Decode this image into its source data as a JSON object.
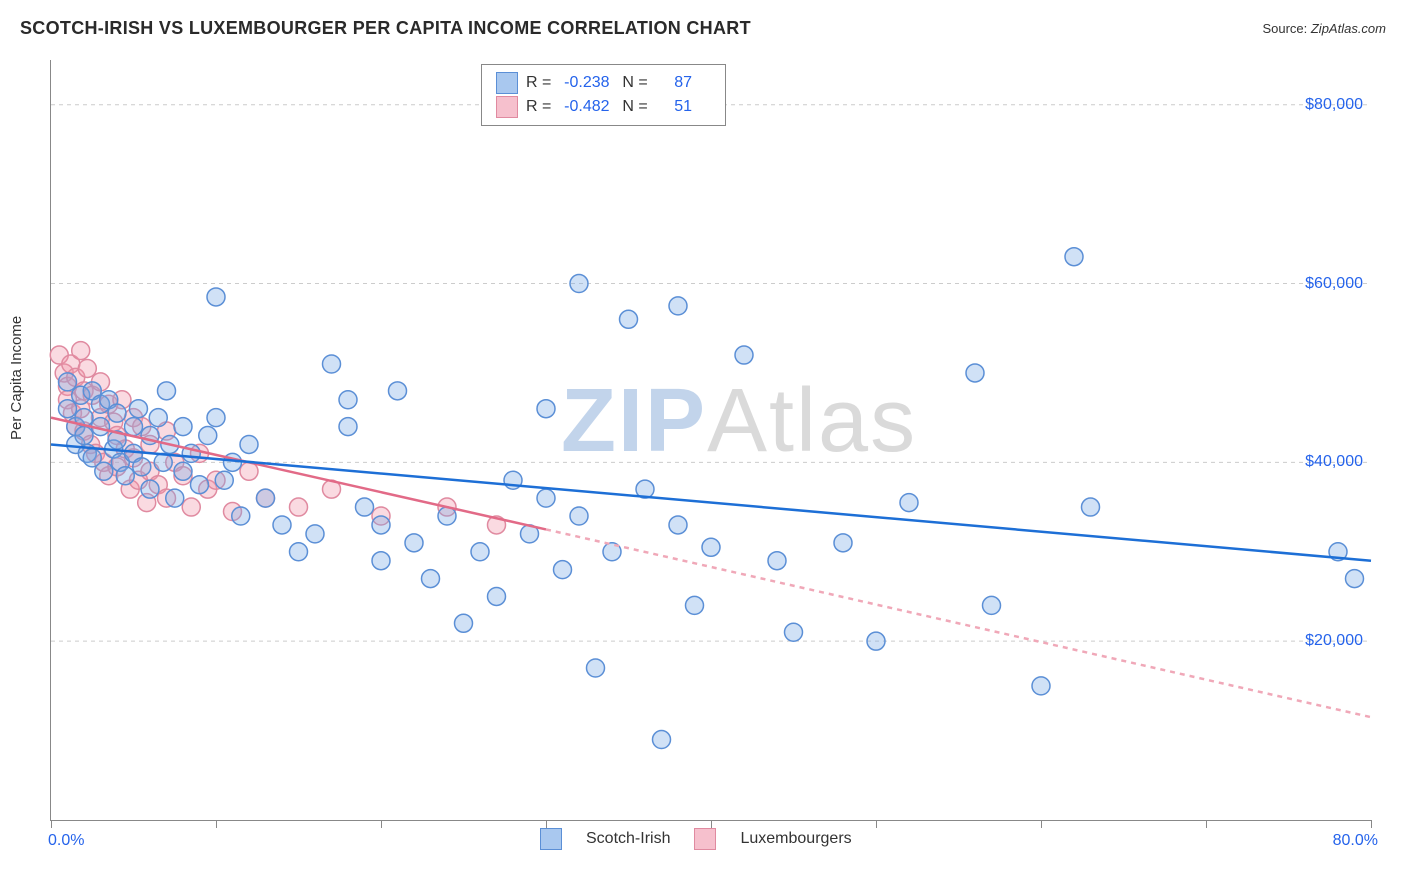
{
  "title": "SCOTCH-IRISH VS LUXEMBOURGER PER CAPITA INCOME CORRELATION CHART",
  "source_prefix": "Source: ",
  "source_name": "ZipAtlas.com",
  "y_axis_label": "Per Capita Income",
  "watermark_a": "ZIP",
  "watermark_b": "Atlas",
  "chart": {
    "type": "scatter",
    "background_color": "#ffffff",
    "grid_color": "#cccccc",
    "axis_color": "#888888",
    "text_color": "#333333",
    "value_color": "#2563eb",
    "xlim": [
      0,
      80
    ],
    "ylim": [
      0,
      85000
    ],
    "x_start_label": "0.0%",
    "x_end_label": "80.0%",
    "x_ticks": [
      0,
      10,
      20,
      30,
      40,
      50,
      60,
      70,
      80
    ],
    "y_ticks": [
      {
        "v": 20000,
        "label": "$20,000"
      },
      {
        "v": 40000,
        "label": "$40,000"
      },
      {
        "v": 60000,
        "label": "$60,000"
      },
      {
        "v": 80000,
        "label": "$80,000"
      }
    ],
    "marker_radius": 9,
    "marker_stroke_width": 1.5,
    "trend_line_width": 2.5,
    "dashed_pattern": "5,5",
    "series": [
      {
        "name": "Scotch-Irish",
        "fill": "rgba(120,170,230,0.35)",
        "stroke": "#5b8fd6",
        "swatch_fill": "#a9c8ef",
        "swatch_border": "#5b8fd6",
        "R": "-0.238",
        "N": "87",
        "trend": {
          "x1": 0,
          "y1": 42000,
          "x2": 80,
          "y2": 29000,
          "color": "#1d6fd6"
        },
        "points": [
          [
            1,
            49000
          ],
          [
            1,
            46000
          ],
          [
            1.5,
            44000
          ],
          [
            1.5,
            42000
          ],
          [
            1.8,
            47500
          ],
          [
            2,
            45000
          ],
          [
            2,
            43000
          ],
          [
            2.2,
            41000
          ],
          [
            2.5,
            48000
          ],
          [
            2.5,
            40500
          ],
          [
            3,
            46500
          ],
          [
            3,
            44000
          ],
          [
            3.2,
            39000
          ],
          [
            3.5,
            47000
          ],
          [
            3.8,
            41500
          ],
          [
            4,
            45500
          ],
          [
            4,
            42500
          ],
          [
            4.2,
            40000
          ],
          [
            4.5,
            38500
          ],
          [
            5,
            44000
          ],
          [
            5,
            41000
          ],
          [
            5.3,
            46000
          ],
          [
            5.5,
            39500
          ],
          [
            6,
            43000
          ],
          [
            6,
            37000
          ],
          [
            6.5,
            45000
          ],
          [
            6.8,
            40000
          ],
          [
            7,
            48000
          ],
          [
            7.2,
            42000
          ],
          [
            7.5,
            36000
          ],
          [
            8,
            44000
          ],
          [
            8,
            39000
          ],
          [
            8.5,
            41000
          ],
          [
            9,
            37500
          ],
          [
            9.5,
            43000
          ],
          [
            10,
            58500
          ],
          [
            10,
            45000
          ],
          [
            10.5,
            38000
          ],
          [
            11,
            40000
          ],
          [
            11.5,
            34000
          ],
          [
            12,
            42000
          ],
          [
            13,
            36000
          ],
          [
            14,
            33000
          ],
          [
            15,
            30000
          ],
          [
            16,
            32000
          ],
          [
            17,
            51000
          ],
          [
            18,
            47000
          ],
          [
            18,
            44000
          ],
          [
            19,
            35000
          ],
          [
            20,
            33000
          ],
          [
            20,
            29000
          ],
          [
            21,
            48000
          ],
          [
            22,
            31000
          ],
          [
            23,
            27000
          ],
          [
            24,
            34000
          ],
          [
            25,
            22000
          ],
          [
            26,
            30000
          ],
          [
            27,
            25000
          ],
          [
            28,
            38000
          ],
          [
            29,
            32000
          ],
          [
            30,
            46000
          ],
          [
            30,
            36000
          ],
          [
            31,
            28000
          ],
          [
            32,
            60000
          ],
          [
            32,
            34000
          ],
          [
            33,
            17000
          ],
          [
            34,
            30000
          ],
          [
            35,
            56000
          ],
          [
            36,
            37000
          ],
          [
            37,
            9000
          ],
          [
            38,
            57500
          ],
          [
            38,
            33000
          ],
          [
            39,
            24000
          ],
          [
            40,
            30500
          ],
          [
            42,
            52000
          ],
          [
            44,
            29000
          ],
          [
            45,
            21000
          ],
          [
            48,
            31000
          ],
          [
            50,
            20000
          ],
          [
            52,
            35500
          ],
          [
            56,
            50000
          ],
          [
            57,
            24000
          ],
          [
            60,
            15000
          ],
          [
            62,
            63000
          ],
          [
            63,
            35000
          ],
          [
            78,
            30000
          ],
          [
            79,
            27000
          ]
        ]
      },
      {
        "name": "Luxembourgers",
        "fill": "rgba(240,150,170,0.35)",
        "stroke": "#e08aa0",
        "swatch_fill": "#f6c0cd",
        "swatch_border": "#e08aa0",
        "R": "-0.482",
        "N": "51",
        "trend_solid": {
          "x1": 0,
          "y1": 45000,
          "x2": 30,
          "y2": 32500,
          "color": "#e26a87"
        },
        "trend_dashed": {
          "x1": 30,
          "y1": 32500,
          "x2": 80,
          "y2": 11500,
          "color": "#f0a8b8"
        },
        "points": [
          [
            0.5,
            52000
          ],
          [
            0.8,
            50000
          ],
          [
            1,
            48500
          ],
          [
            1,
            47000
          ],
          [
            1.2,
            51000
          ],
          [
            1.3,
            45500
          ],
          [
            1.5,
            49500
          ],
          [
            1.5,
            44000
          ],
          [
            1.8,
            52500
          ],
          [
            1.8,
            46000
          ],
          [
            2,
            48000
          ],
          [
            2,
            43500
          ],
          [
            2.2,
            50500
          ],
          [
            2.4,
            42000
          ],
          [
            2.5,
            47500
          ],
          [
            2.7,
            41000
          ],
          [
            3,
            49000
          ],
          [
            3,
            45000
          ],
          [
            3.2,
            40000
          ],
          [
            3.5,
            46500
          ],
          [
            3.5,
            38500
          ],
          [
            3.8,
            44500
          ],
          [
            4,
            43000
          ],
          [
            4,
            39500
          ],
          [
            4.3,
            47000
          ],
          [
            4.5,
            41500
          ],
          [
            4.8,
            37000
          ],
          [
            5,
            45000
          ],
          [
            5,
            40500
          ],
          [
            5.3,
            38000
          ],
          [
            5.5,
            44000
          ],
          [
            5.8,
            35500
          ],
          [
            6,
            42000
          ],
          [
            6,
            39000
          ],
          [
            6.5,
            37500
          ],
          [
            7,
            43500
          ],
          [
            7,
            36000
          ],
          [
            7.5,
            40000
          ],
          [
            8,
            38500
          ],
          [
            8.5,
            35000
          ],
          [
            9,
            41000
          ],
          [
            9.5,
            37000
          ],
          [
            10,
            38000
          ],
          [
            11,
            34500
          ],
          [
            12,
            39000
          ],
          [
            13,
            36000
          ],
          [
            15,
            35000
          ],
          [
            17,
            37000
          ],
          [
            20,
            34000
          ],
          [
            24,
            35000
          ],
          [
            27,
            33000
          ]
        ]
      }
    ],
    "legend_labels": {
      "R": "R =",
      "N": "N ="
    }
  }
}
